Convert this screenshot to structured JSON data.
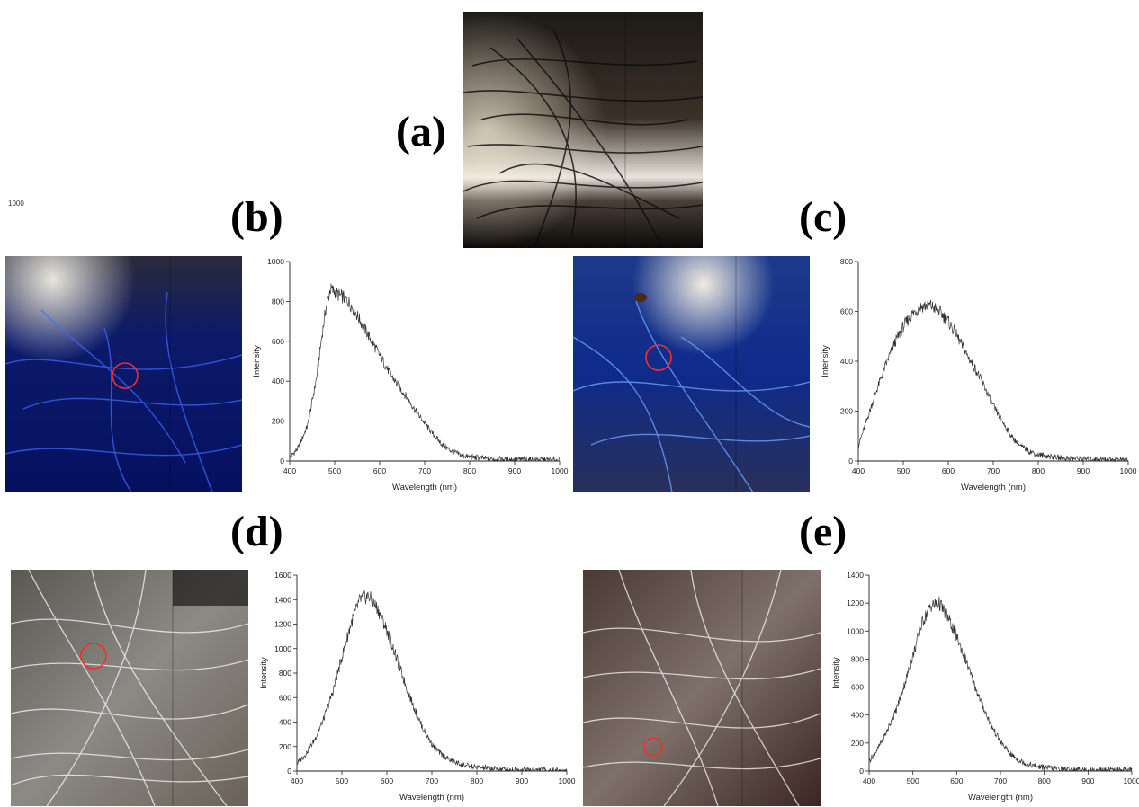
{
  "panels": {
    "a": {
      "label": "(a)"
    },
    "b": {
      "label": "(b)"
    },
    "c": {
      "label": "(c)"
    },
    "d": {
      "label": "(d)"
    },
    "e": {
      "label": "(e)"
    }
  },
  "stray_label": "1000",
  "chart_data": [
    {
      "id": "b",
      "type": "line",
      "xlabel": "Wavelength (nm)",
      "ylabel": "Intensity",
      "xlim": [
        400,
        1000
      ],
      "ylim": [
        0,
        1000
      ],
      "xticks": [
        "400",
        "500",
        "600",
        "700",
        "800",
        "900",
        "1000"
      ],
      "yticks": [
        "0",
        "200",
        "400",
        "600",
        "800",
        "1000"
      ],
      "series": [
        {
          "x": [
            400,
            420,
            440,
            460,
            470,
            480,
            490,
            500,
            510,
            520,
            530,
            540,
            550,
            560,
            580,
            600,
            620,
            640,
            660,
            680,
            700,
            720,
            740,
            760,
            780,
            800,
            850,
            900,
            1000
          ],
          "y": [
            15,
            70,
            180,
            420,
            600,
            760,
            860,
            850,
            830,
            820,
            800,
            770,
            730,
            690,
            610,
            530,
            450,
            380,
            320,
            250,
            190,
            130,
            80,
            50,
            30,
            20,
            10,
            8,
            5
          ]
        }
      ]
    },
    {
      "id": "c",
      "type": "line",
      "xlabel": "Wavelength (nm)",
      "ylabel": "Intensity",
      "xlim": [
        400,
        1000
      ],
      "ylim": [
        0,
        800
      ],
      "xticks": [
        "400",
        "500",
        "600",
        "700",
        "800",
        "900",
        "1000"
      ],
      "yticks": [
        "0",
        "200",
        "400",
        "600",
        "800"
      ],
      "series": [
        {
          "x": [
            400,
            420,
            440,
            460,
            480,
            500,
            520,
            540,
            560,
            580,
            600,
            620,
            640,
            660,
            680,
            700,
            720,
            740,
            760,
            780,
            800,
            850,
            900,
            1000
          ],
          "y": [
            60,
            170,
            280,
            380,
            470,
            540,
            590,
            620,
            625,
            600,
            560,
            500,
            430,
            370,
            300,
            220,
            160,
            100,
            60,
            40,
            25,
            12,
            8,
            5
          ]
        }
      ]
    },
    {
      "id": "d",
      "type": "line",
      "xlabel": "Wavelength (nm)",
      "ylabel": "Intensity",
      "xlim": [
        400,
        1000
      ],
      "ylim": [
        0,
        1600
      ],
      "xticks": [
        "400",
        "500",
        "600",
        "700",
        "800",
        "900",
        "1000"
      ],
      "yticks": [
        "0",
        "200",
        "400",
        "600",
        "800",
        "1000",
        "1200",
        "1400",
        "1600"
      ],
      "series": [
        {
          "x": [
            400,
            420,
            440,
            460,
            480,
            500,
            520,
            540,
            560,
            580,
            600,
            620,
            640,
            660,
            680,
            700,
            720,
            740,
            760,
            780,
            800,
            850,
            900,
            1000
          ],
          "y": [
            60,
            140,
            260,
            430,
            650,
            930,
            1200,
            1400,
            1430,
            1320,
            1150,
            940,
            720,
            520,
            350,
            220,
            140,
            90,
            60,
            40,
            30,
            15,
            10,
            5
          ]
        }
      ]
    },
    {
      "id": "e",
      "type": "line",
      "xlabel": "Wavelength (nm)",
      "ylabel": "Intensity",
      "xlim": [
        400,
        1000
      ],
      "ylim": [
        0,
        1400
      ],
      "xticks": [
        "400",
        "500",
        "600",
        "700",
        "800",
        "900",
        "1000"
      ],
      "yticks": [
        "0",
        "200",
        "400",
        "600",
        "800",
        "1000",
        "1200",
        "1400"
      ],
      "series": [
        {
          "x": [
            400,
            420,
            440,
            460,
            480,
            500,
            520,
            540,
            560,
            580,
            600,
            620,
            640,
            660,
            680,
            700,
            720,
            740,
            760,
            780,
            800,
            850,
            900,
            1000
          ],
          "y": [
            70,
            160,
            280,
            420,
            610,
            820,
            1050,
            1180,
            1200,
            1100,
            960,
            800,
            620,
            460,
            320,
            210,
            130,
            80,
            50,
            35,
            25,
            12,
            8,
            5
          ]
        }
      ]
    }
  ]
}
